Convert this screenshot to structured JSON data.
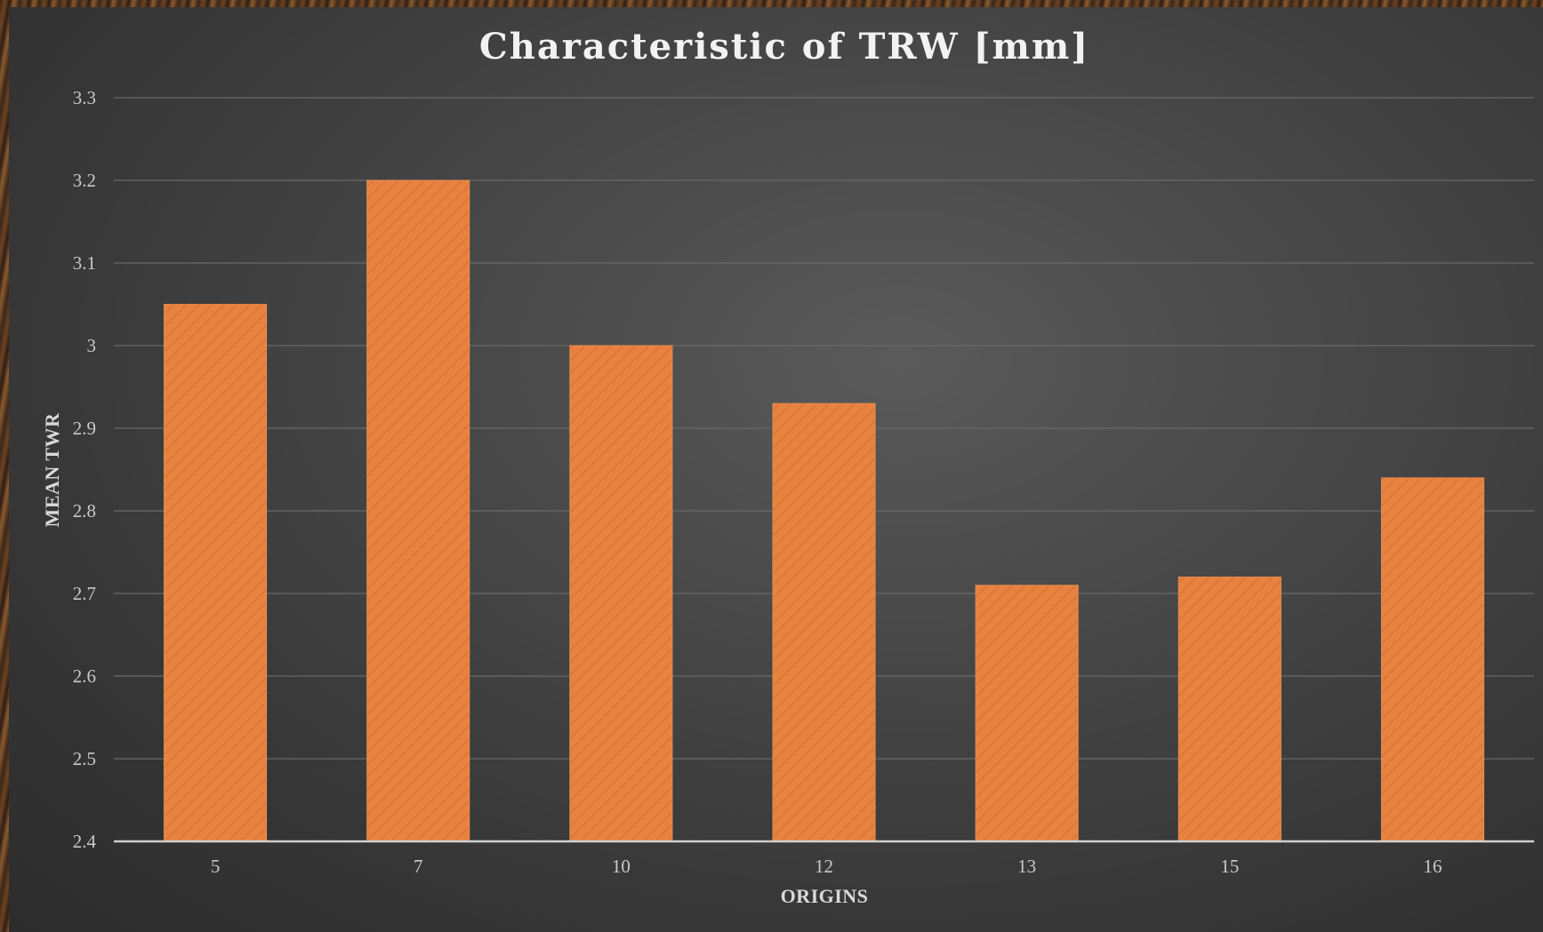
{
  "chart_data": {
    "type": "bar",
    "title": "Characteristic of TRW [mm]",
    "xlabel": "ORIGINS",
    "ylabel": "MEAN TWR",
    "categories": [
      "5",
      "7",
      "10",
      "12",
      "13",
      "15",
      "16"
    ],
    "values": [
      3.05,
      3.2,
      3.0,
      2.93,
      2.71,
      2.72,
      2.84
    ],
    "ylim": [
      2.4,
      3.3
    ],
    "yticks": [
      "2.4",
      "2.5",
      "2.6",
      "2.7",
      "2.8",
      "2.9",
      "3",
      "3.1",
      "3.2",
      "3.3"
    ],
    "grid": true,
    "legend": "none",
    "colors": {
      "bar": "#e8823f",
      "background": "#444444",
      "text": "#f2f2f2"
    }
  }
}
